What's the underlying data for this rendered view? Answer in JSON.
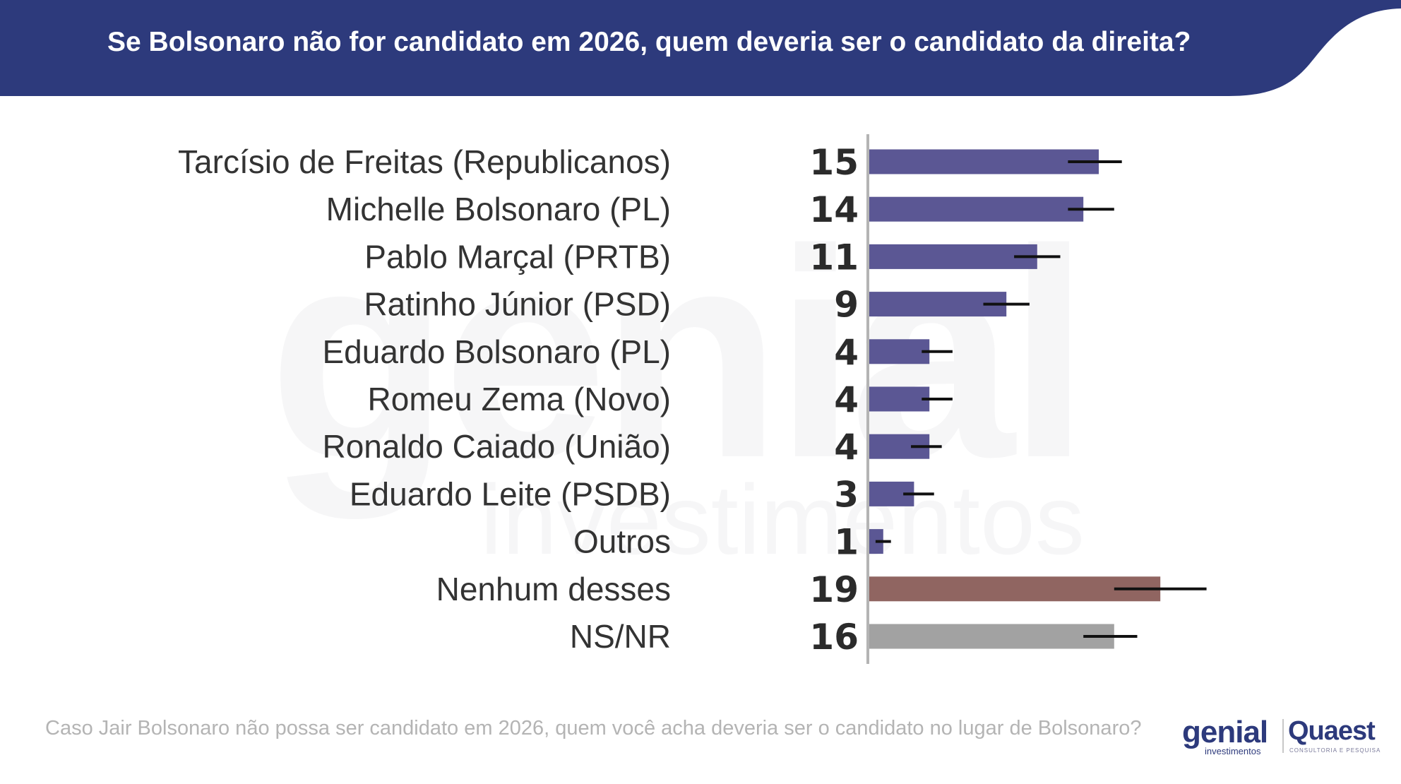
{
  "header": {
    "title": "Se Bolsonaro não for candidato em 2026, quem deveria ser o candidato da direita?",
    "background": "#2d3a7c"
  },
  "watermark": {
    "main": "genial",
    "sub": "investimentos"
  },
  "chart_data": {
    "type": "bar",
    "orientation": "horizontal",
    "title": "Se Bolsonaro não for candidato em 2026, quem deveria ser o candidato da direita?",
    "categories": [
      "Tarcísio de Freitas (Republicanos)",
      "Michelle Bolsonaro (PL)",
      "Pablo Marçal (PRTB)",
      "Ratinho Júnior (PSD)",
      "Eduardo Bolsonaro (PL)",
      "Romeu Zema (Novo)",
      "Ronaldo Caiado (União)",
      "Eduardo Leite (PSDB)",
      "Outros",
      "Nenhum desses",
      "NS/NR"
    ],
    "values": [
      15,
      14,
      11,
      9,
      4,
      4,
      4,
      3,
      1,
      19,
      16
    ],
    "error_low": [
      13,
      13,
      9.5,
      7.5,
      3.5,
      3.5,
      2.8,
      2.3,
      0.5,
      16,
      14
    ],
    "error_high": [
      16.5,
      16,
      12.5,
      10.5,
      5.5,
      5.5,
      4.8,
      4.3,
      1.5,
      22,
      17.5
    ],
    "colors": [
      "#5b5794",
      "#5b5794",
      "#5b5794",
      "#5b5794",
      "#5b5794",
      "#5b5794",
      "#5b5794",
      "#5b5794",
      "#5b5794",
      "#906561",
      "#a2a2a2"
    ],
    "xlim": [
      0,
      25
    ],
    "show_data_labels": true,
    "grid": false,
    "legend": "none"
  },
  "footer": {
    "question": "Caso Jair Bolsonaro não possa ser candidato em 2026, quem você acha deveria ser o candidato no lugar de Bolsonaro?",
    "logo_genial": "genial",
    "logo_genial_sub": "investimentos",
    "logo_quaest": "Quaest",
    "logo_quaest_sub": "CONSULTORIA E PESQUISA"
  }
}
